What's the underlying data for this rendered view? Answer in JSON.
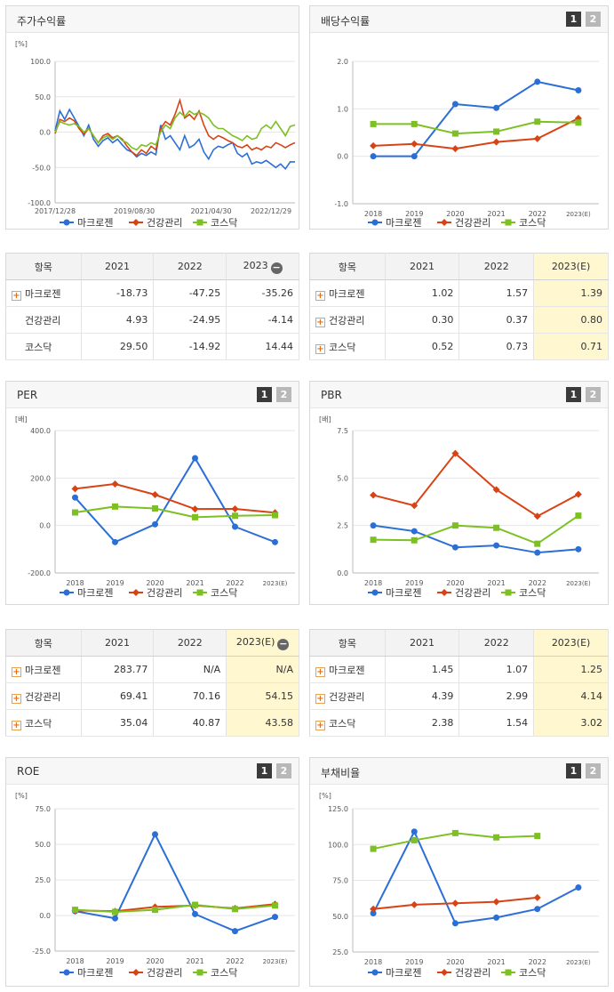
{
  "colors": {
    "series": [
      "#2b6fd6",
      "#d84315",
      "#7cc022"
    ]
  },
  "legend": [
    "마크로젠",
    "건강관리",
    "코스닥"
  ],
  "panels": {
    "stock": {
      "title": "주가수익률"
    },
    "div": {
      "title": "배당수익률",
      "btn1": "1",
      "btn2": "2"
    },
    "per": {
      "title": "PER",
      "btn1": "1",
      "btn2": "2"
    },
    "pbr": {
      "title": "PBR",
      "btn1": "1",
      "btn2": "2"
    },
    "roe": {
      "title": "ROE",
      "btn1": "1",
      "btn2": "2"
    },
    "debt": {
      "title": "부채비율",
      "btn1": "1",
      "btn2": "2"
    }
  },
  "tables": {
    "stock": {
      "header": [
        "항목",
        "2021",
        "2022",
        "2023"
      ],
      "minus": "−",
      "rows": [
        {
          "label": "마크로젠",
          "v": [
            "-18.73",
            "-47.25",
            "-35.26"
          ]
        },
        {
          "label": "건강관리",
          "v": [
            "4.93",
            "-24.95",
            "-4.14"
          ]
        },
        {
          "label": "코스닥",
          "v": [
            "29.50",
            "-14.92",
            "14.44"
          ]
        }
      ]
    },
    "div": {
      "header": [
        "항목",
        "2021",
        "2022",
        "2023(E)"
      ],
      "rows": [
        {
          "label": "마크로젠",
          "v": [
            "1.02",
            "1.57",
            "1.39"
          ]
        },
        {
          "label": "건강관리",
          "v": [
            "0.30",
            "0.37",
            "0.80"
          ]
        },
        {
          "label": "코스닥",
          "v": [
            "0.52",
            "0.73",
            "0.71"
          ]
        }
      ]
    },
    "per": {
      "header": [
        "항목",
        "2021",
        "2022",
        "2023(E)"
      ],
      "rows": [
        {
          "label": "마크로젠",
          "v": [
            "283.77",
            "N/A",
            "N/A"
          ]
        },
        {
          "label": "건강관리",
          "v": [
            "69.41",
            "70.16",
            "54.15"
          ]
        },
        {
          "label": "코스닥",
          "v": [
            "35.04",
            "40.87",
            "43.58"
          ]
        }
      ]
    },
    "pbr": {
      "header": [
        "항목",
        "2021",
        "2022",
        "2023(E)"
      ],
      "rows": [
        {
          "label": "마크로젠",
          "v": [
            "1.45",
            "1.07",
            "1.25"
          ]
        },
        {
          "label": "건강관리",
          "v": [
            "4.39",
            "2.99",
            "4.14"
          ]
        },
        {
          "label": "코스닥",
          "v": [
            "2.38",
            "1.54",
            "3.02"
          ]
        }
      ]
    }
  },
  "chart_data": [
    {
      "id": "stock",
      "type": "line",
      "unit": "[%]",
      "ylim": [
        -100,
        100
      ],
      "yticks": [
        "100.0",
        "50.0",
        "0.0",
        "-50.0",
        "-100.0"
      ],
      "xticks": [
        "2017/12/28",
        "2019/08/30",
        "2021/04/30",
        "2022/12/29"
      ],
      "series": [
        {
          "name": "마크로젠",
          "values": [
            2,
            30,
            18,
            32,
            20,
            8,
            -5,
            10,
            -10,
            -20,
            -12,
            -8,
            -15,
            -10,
            -18,
            -25,
            -28,
            -35,
            -30,
            -33,
            -28,
            -32,
            10,
            -10,
            -5,
            -15,
            -25,
            -5,
            -22,
            -18,
            -10,
            -28,
            -38,
            -25,
            -20,
            -22,
            -18,
            -15,
            -30,
            -35,
            -30,
            -45,
            -42,
            -44,
            -40,
            -45,
            -50,
            -45,
            -52,
            -42,
            -42
          ]
        },
        {
          "name": "건강관리",
          "values": [
            -2,
            18,
            15,
            20,
            16,
            5,
            -3,
            5,
            -5,
            -15,
            -5,
            -2,
            -8,
            -5,
            -10,
            -20,
            -28,
            -33,
            -25,
            -30,
            -20,
            -25,
            5,
            15,
            10,
            25,
            45,
            20,
            25,
            18,
            30,
            10,
            -5,
            -10,
            -5,
            -8,
            -12,
            -15,
            -20,
            -22,
            -18,
            -25,
            -22,
            -25,
            -20,
            -22,
            -15,
            -18,
            -22,
            -18,
            -15
          ]
        },
        {
          "name": "코스닥",
          "values": [
            0,
            15,
            12,
            10,
            12,
            8,
            0,
            5,
            -5,
            -15,
            -8,
            -5,
            -10,
            -5,
            -12,
            -15,
            -22,
            -25,
            -18,
            -20,
            -15,
            -18,
            0,
            10,
            5,
            20,
            28,
            22,
            30,
            25,
            28,
            25,
            20,
            10,
            5,
            5,
            0,
            -5,
            -8,
            -12,
            -5,
            -10,
            -8,
            5,
            10,
            5,
            15,
            5,
            -5,
            8,
            10
          ]
        }
      ]
    },
    {
      "id": "div",
      "type": "line",
      "ylim": [
        -1,
        2
      ],
      "yticks": [
        "2.0",
        "1.0",
        "0.0",
        "-1.0"
      ],
      "categories": [
        "2018",
        "2019",
        "2020",
        "2021",
        "2022",
        "2023(E)"
      ],
      "series": [
        {
          "name": "마크로젠",
          "values": [
            0.0,
            0.0,
            1.1,
            1.02,
            1.57,
            1.39
          ]
        },
        {
          "name": "건강관리",
          "values": [
            0.22,
            0.26,
            0.16,
            0.3,
            0.37,
            0.8
          ]
        },
        {
          "name": "코스닥",
          "values": [
            0.68,
            0.68,
            0.48,
            0.52,
            0.73,
            0.71
          ]
        }
      ]
    },
    {
      "id": "per",
      "type": "line",
      "unit": "[배]",
      "ylim": [
        -200,
        400
      ],
      "yticks": [
        "400.0",
        "200.0",
        "0.0",
        "-200.0"
      ],
      "categories": [
        "2018",
        "2019",
        "2020",
        "2021",
        "2022",
        "2023(E)"
      ],
      "series": [
        {
          "name": "마크로젠",
          "values": [
            118,
            -70,
            5,
            283.77,
            -5,
            -70
          ]
        },
        {
          "name": "건강관리",
          "values": [
            155,
            175,
            130,
            69.41,
            70.16,
            54.15
          ]
        },
        {
          "name": "코스닥",
          "values": [
            55,
            80,
            72,
            35.04,
            40.87,
            43.58
          ]
        }
      ]
    },
    {
      "id": "pbr",
      "type": "line",
      "unit": "[배]",
      "ylim": [
        0,
        7.5
      ],
      "yticks": [
        "7.5",
        "5.0",
        "2.5",
        "0.0"
      ],
      "categories": [
        "2018",
        "2019",
        "2020",
        "2021",
        "2022",
        "2023(E)"
      ],
      "series": [
        {
          "name": "마크로젠",
          "values": [
            2.5,
            2.2,
            1.35,
            1.45,
            1.07,
            1.25
          ]
        },
        {
          "name": "건강관리",
          "values": [
            4.1,
            3.55,
            6.3,
            4.39,
            2.99,
            4.14
          ]
        },
        {
          "name": "코스닥",
          "values": [
            1.75,
            1.72,
            2.5,
            2.38,
            1.54,
            3.02
          ]
        }
      ]
    },
    {
      "id": "roe",
      "type": "line",
      "unit": "[%]",
      "ylim": [
        -25,
        75
      ],
      "yticks": [
        "75.0",
        "50.0",
        "25.0",
        "0.0",
        "-25.0"
      ],
      "categories": [
        "2018",
        "2019",
        "2020",
        "2021",
        "2022",
        "2023(E)"
      ],
      "series": [
        {
          "name": "마크로젠",
          "values": [
            3,
            -2,
            57,
            1,
            -11,
            -1
          ]
        },
        {
          "name": "건강관리",
          "values": [
            3.5,
            3,
            6,
            7,
            5,
            8
          ]
        },
        {
          "name": "코스닥",
          "values": [
            4,
            2.5,
            4,
            7.5,
            4.5,
            7
          ]
        }
      ]
    },
    {
      "id": "debt",
      "type": "line",
      "unit": "[%]",
      "ylim": [
        25,
        125
      ],
      "yticks": [
        "125.0",
        "100.0",
        "75.0",
        "50.0",
        "25.0"
      ],
      "categories": [
        "2018",
        "2019",
        "2020",
        "2021",
        "2022",
        "2023(E)"
      ],
      "series": [
        {
          "name": "마크로젠",
          "values": [
            52,
            109,
            45,
            49,
            55,
            70
          ]
        },
        {
          "name": "건강관리",
          "values": [
            55,
            58,
            59,
            60,
            63,
            null
          ]
        },
        {
          "name": "코스닥",
          "values": [
            97,
            103,
            108,
            105,
            106,
            null
          ]
        }
      ]
    }
  ]
}
